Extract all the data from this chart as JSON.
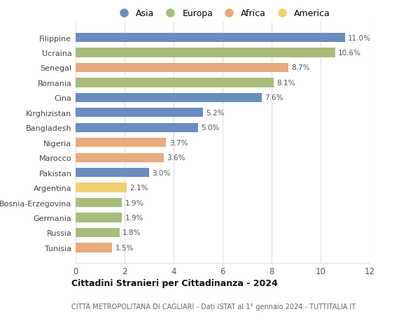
{
  "categories": [
    "Filippine",
    "Ucraina",
    "Senegal",
    "Romania",
    "Cina",
    "Kirghizistan",
    "Bangladesh",
    "Nigeria",
    "Marocco",
    "Pakistan",
    "Argentina",
    "Bosnia-Erzegovina",
    "Germania",
    "Russia",
    "Tunisia"
  ],
  "values": [
    11.0,
    10.6,
    8.7,
    8.1,
    7.6,
    5.2,
    5.0,
    3.7,
    3.6,
    3.0,
    2.1,
    1.9,
    1.9,
    1.8,
    1.5
  ],
  "continents": [
    "Asia",
    "Europa",
    "Africa",
    "Europa",
    "Asia",
    "Asia",
    "Asia",
    "Africa",
    "Africa",
    "Asia",
    "America",
    "Europa",
    "Europa",
    "Europa",
    "Africa"
  ],
  "colors": {
    "Asia": "#6b8cbf",
    "Europa": "#a8bc7b",
    "Africa": "#e8aa7e",
    "America": "#f0d070"
  },
  "legend_order": [
    "Asia",
    "Europa",
    "Africa",
    "America"
  ],
  "title": "Cittadini Stranieri per Cittadinanza - 2024",
  "subtitle": "CITTÀ METROPOLITANA DI CAGLIARI - Dati ISTAT al 1° gennaio 2024 - TUTTITALIA.IT",
  "xlim": [
    0,
    12
  ],
  "xticks": [
    0,
    2,
    4,
    6,
    8,
    10,
    12
  ],
  "background_color": "#ffffff",
  "bar_height": 0.62,
  "grid_color": "#e0e0e0",
  "label_color": "#555555",
  "ytick_color": "#444444"
}
